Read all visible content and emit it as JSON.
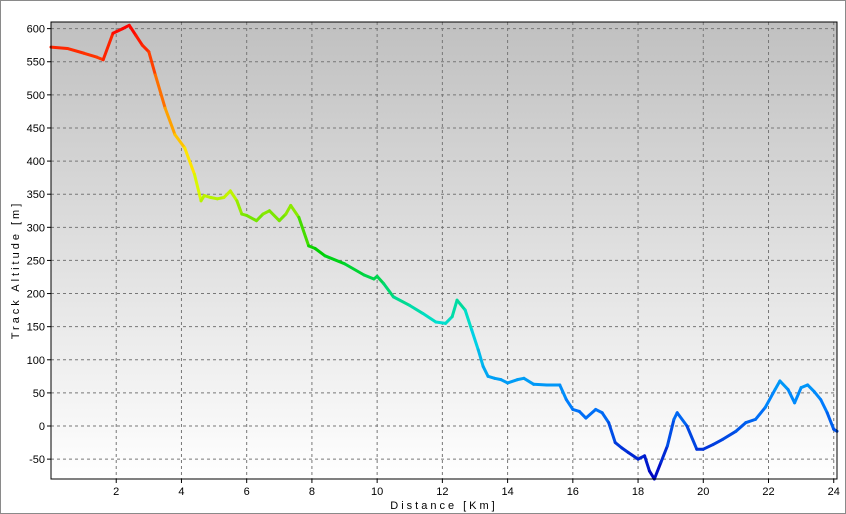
{
  "chart_data": {
    "type": "line",
    "title": "",
    "xlabel": "Distance [Km]",
    "ylabel": "Track Altitude [m]",
    "xlim": [
      0,
      24.1
    ],
    "ylim": [
      -80,
      610
    ],
    "x_ticks": [
      2,
      4,
      6,
      8,
      10,
      12,
      14,
      16,
      18,
      20,
      22,
      24
    ],
    "y_ticks": [
      600,
      550,
      500,
      450,
      400,
      350,
      300,
      250,
      200,
      150,
      100,
      50,
      0,
      -50
    ],
    "grid": true,
    "legend": "none",
    "color_by": "altitude",
    "color_scale": [
      "#ff0000",
      "#ff8000",
      "#ffff00",
      "#00d000",
      "#00e0e0",
      "#0080ff",
      "#0000c0"
    ],
    "background_gradient": [
      "#c0c0c0",
      "#ffffff"
    ],
    "series": [
      {
        "x": [
          0,
          0.5,
          1.0,
          1.4,
          1.6,
          1.9,
          2.2,
          2.4,
          2.6,
          2.8,
          3.0,
          3.2,
          3.5,
          3.8,
          4.1,
          4.4,
          4.6,
          4.7,
          4.9,
          5.1,
          5.3,
          5.5,
          5.7,
          5.85,
          6.0,
          6.3,
          6.5,
          6.7,
          7.0,
          7.2,
          7.35,
          7.6,
          7.9,
          8.1,
          8.4,
          9.0,
          9.6,
          9.9,
          10.0,
          10.2,
          10.5,
          11.0,
          11.4,
          11.8,
          12.1,
          12.3,
          12.45,
          12.7,
          12.9,
          13.1,
          13.25,
          13.4,
          13.6,
          13.8,
          14.0,
          14.3,
          14.5,
          14.8,
          15.2,
          15.6,
          15.8,
          16.0,
          16.2,
          16.4,
          16.7,
          16.9,
          17.1,
          17.3,
          17.5,
          17.7,
          18.0,
          18.2,
          18.35,
          18.5,
          18.7,
          18.9,
          19.1,
          19.2,
          19.5,
          19.8,
          20.0,
          20.3,
          20.6,
          21.0,
          21.3,
          21.6,
          21.9,
          22.2,
          22.35,
          22.6,
          22.8,
          23.0,
          23.2,
          23.4,
          23.6,
          23.8,
          24.0,
          24.1
        ],
        "y": [
          572,
          570,
          563,
          557,
          553,
          593,
          600,
          605,
          590,
          575,
          565,
          530,
          480,
          440,
          420,
          380,
          340,
          348,
          345,
          343,
          345,
          355,
          340,
          320,
          318,
          310,
          320,
          325,
          310,
          320,
          333,
          315,
          272,
          268,
          257,
          245,
          228,
          222,
          226,
          215,
          195,
          182,
          170,
          157,
          155,
          165,
          190,
          175,
          145,
          115,
          90,
          75,
          72,
          70,
          65,
          70,
          72,
          63,
          62,
          62,
          40,
          25,
          22,
          12,
          25,
          20,
          5,
          -25,
          -33,
          -40,
          -50,
          -45,
          -68,
          -80,
          -55,
          -30,
          10,
          20,
          0,
          -35,
          -35,
          -28,
          -20,
          -8,
          5,
          10,
          28,
          55,
          68,
          55,
          35,
          58,
          62,
          52,
          40,
          20,
          -5,
          -8
        ]
      }
    ]
  }
}
